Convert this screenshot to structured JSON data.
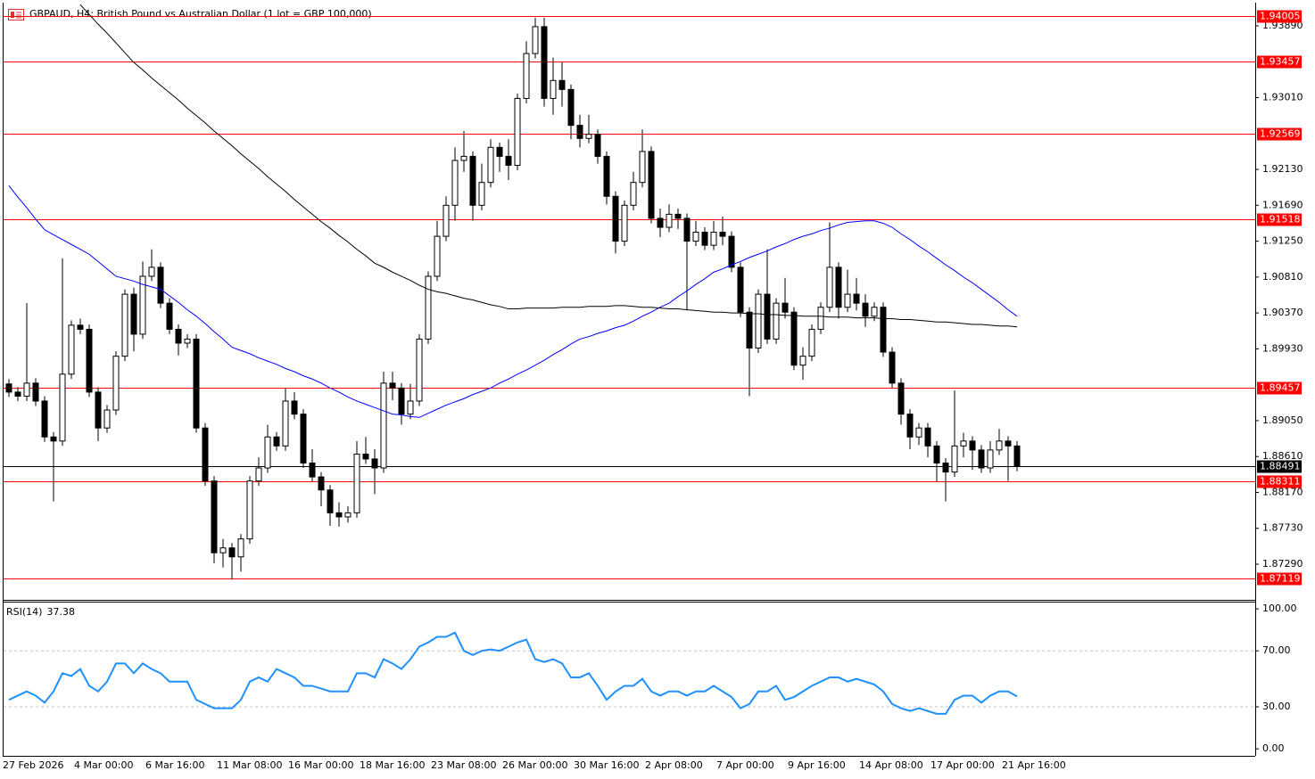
{
  "chart_data": [
    {
      "type": "candlestick",
      "title": "GBPAUD, H4: British Pound vs Australian Dollar (1 lot = GBP 100,000)",
      "categories": [
        "27 Feb 2026",
        null,
        null,
        null,
        null,
        null,
        null,
        null,
        "4 Mar 00:00",
        null,
        null,
        null,
        null,
        null,
        null,
        null,
        "6 Mar 16:00",
        null,
        null,
        null,
        null,
        null,
        null,
        null,
        "11 Mar 08:00",
        null,
        null,
        null,
        null,
        null,
        null,
        null,
        "16 Mar 00:00",
        null,
        null,
        null,
        null,
        null,
        null,
        null,
        "18 Mar 16:00",
        null,
        null,
        null,
        null,
        null,
        null,
        null,
        "23 Mar 08:00",
        null,
        null,
        null,
        null,
        null,
        null,
        null,
        "26 Mar 00:00",
        null,
        null,
        null,
        null,
        null,
        null,
        null,
        "30 Mar 16:00",
        null,
        null,
        null,
        null,
        null,
        null,
        null,
        "2 Apr 08:00",
        null,
        null,
        null,
        null,
        null,
        null,
        null,
        "7 Apr 00:00",
        null,
        null,
        null,
        null,
        null,
        null,
        null,
        "9 Apr 16:00",
        null,
        null,
        null,
        null,
        null,
        null,
        null,
        "14 Apr 08:00",
        null,
        null,
        null,
        null,
        null,
        null,
        null,
        "17 Apr 00:00",
        null,
        null,
        null,
        null,
        null,
        null,
        null,
        "21 Apr 16:00",
        null
      ],
      "open": [
        1.895,
        1.894,
        1.8935,
        1.8951,
        1.8929,
        1.8885,
        1.888,
        1.8962,
        1.9022,
        1.9017,
        1.894,
        1.8896,
        1.8918,
        1.8984,
        1.906,
        1.9011,
        1.9082,
        1.9093,
        1.9049,
        1.9017,
        1.9,
        1.9005,
        1.8896,
        1.8831,
        1.8743,
        1.8749,
        1.8738,
        1.876,
        1.8831,
        1.8847,
        1.8885,
        1.8874,
        1.8929,
        1.8913,
        1.8853,
        1.8836,
        1.882,
        1.8792,
        1.8787,
        1.8792,
        1.8864,
        1.8858,
        1.8847,
        1.8951,
        1.8945,
        1.8913,
        1.8929,
        1.9005,
        1.9082,
        1.9131,
        1.9169,
        1.9224,
        1.9229,
        1.9169,
        1.9197,
        1.924,
        1.9229,
        1.9218,
        1.93,
        1.9355,
        1.9388,
        1.93,
        1.9322,
        1.9311,
        1.9267,
        1.9251,
        1.9256,
        1.9229,
        1.918,
        1.9125,
        1.9169,
        1.9197,
        1.9235,
        1.9153,
        1.9142,
        1.9158,
        1.9153,
        1.9125,
        1.9136,
        1.912,
        1.9136,
        1.9131,
        1.9093,
        1.9038,
        1.8994,
        1.906,
        1.9005,
        1.9049,
        1.9038,
        1.8973,
        1.8984,
        1.9017,
        1.9044,
        1.9093,
        1.9044,
        1.906,
        1.9049,
        1.9033,
        1.9044,
        1.8989,
        1.8951,
        1.8913,
        1.8885,
        1.8896,
        1.8874,
        1.8853,
        1.8842,
        1.8874,
        1.888,
        1.8869,
        1.8847,
        1.8869,
        1.888,
        1.8874
      ],
      "high": [
        1.8956,
        1.8946,
        1.9049,
        1.8957,
        1.8935,
        1.8891,
        1.9104,
        1.9028,
        1.903,
        1.9023,
        1.8946,
        1.8924,
        1.899,
        1.9066,
        1.9068,
        1.91,
        1.9115,
        1.9099,
        1.9055,
        1.9023,
        1.9011,
        1.9011,
        1.8902,
        1.8837,
        1.876,
        1.8755,
        1.8766,
        1.8837,
        1.886,
        1.89,
        1.8891,
        1.8945,
        1.894,
        1.8919,
        1.887,
        1.8842,
        1.8826,
        1.8805,
        1.88,
        1.888,
        1.8885,
        1.887,
        1.8965,
        1.8965,
        1.8951,
        1.895,
        1.9011,
        1.9088,
        1.915,
        1.918,
        1.924,
        1.926,
        1.9235,
        1.922,
        1.925,
        1.9246,
        1.925,
        1.9306,
        1.937,
        1.9399,
        1.9399,
        1.935,
        1.9345,
        1.9317,
        1.928,
        1.928,
        1.9262,
        1.9235,
        1.9186,
        1.9175,
        1.921,
        1.9262,
        1.9241,
        1.9165,
        1.917,
        1.9165,
        1.9159,
        1.915,
        1.9142,
        1.915,
        1.9155,
        1.9137,
        1.9099,
        1.9044,
        1.9066,
        1.9115,
        1.9055,
        1.908,
        1.9044,
        1.8995,
        1.9023,
        1.905,
        1.9148,
        1.9099,
        1.909,
        1.908,
        1.906,
        1.905,
        1.905,
        1.8995,
        1.8957,
        1.8919,
        1.8902,
        1.8902,
        1.888,
        1.8859,
        1.8942,
        1.889,
        1.8886,
        1.8875,
        1.888,
        1.8895,
        1.8886,
        1.888
      ],
      "low": [
        1.8934,
        1.8929,
        1.8929,
        1.8923,
        1.8879,
        1.8806,
        1.8874,
        1.8956,
        1.9011,
        1.8934,
        1.888,
        1.889,
        1.8912,
        1.8978,
        1.899,
        1.9005,
        1.9076,
        1.9043,
        1.9011,
        1.8985,
        1.8994,
        1.889,
        1.8825,
        1.873,
        1.8725,
        1.871,
        1.872,
        1.8754,
        1.8825,
        1.8841,
        1.8868,
        1.8868,
        1.8907,
        1.8847,
        1.883,
        1.88,
        1.8776,
        1.8775,
        1.878,
        1.8786,
        1.8852,
        1.8815,
        1.8841,
        1.893,
        1.89,
        1.8907,
        1.8923,
        1.8999,
        1.9076,
        1.9125,
        1.915,
        1.921,
        1.915,
        1.9163,
        1.9191,
        1.921,
        1.92,
        1.9212,
        1.9294,
        1.9349,
        1.929,
        1.928,
        1.929,
        1.925,
        1.924,
        1.9245,
        1.922,
        1.917,
        1.911,
        1.9119,
        1.9163,
        1.9191,
        1.9147,
        1.913,
        1.9136,
        1.914,
        1.904,
        1.9119,
        1.9114,
        1.9114,
        1.912,
        1.9087,
        1.9032,
        1.8935,
        1.8988,
        1.8999,
        1.8999,
        1.903,
        1.8967,
        1.8955,
        1.8978,
        1.9011,
        1.9038,
        1.903,
        1.9038,
        1.904,
        1.902,
        1.9027,
        1.8983,
        1.8945,
        1.89,
        1.887,
        1.8875,
        1.886,
        1.883,
        1.8806,
        1.8836,
        1.886,
        1.8845,
        1.8841,
        1.8841,
        1.8863,
        1.8831,
        1.8843
      ],
      "close": [
        1.894,
        1.8935,
        1.8951,
        1.8929,
        1.8885,
        1.888,
        1.8962,
        1.9022,
        1.9017,
        1.894,
        1.8896,
        1.8918,
        1.8984,
        1.906,
        1.9011,
        1.9082,
        1.9093,
        1.9049,
        1.9017,
        1.9,
        1.9005,
        1.8896,
        1.8831,
        1.8743,
        1.8749,
        1.8738,
        1.876,
        1.8831,
        1.8847,
        1.8885,
        1.8874,
        1.8929,
        1.8913,
        1.8853,
        1.8836,
        1.882,
        1.8792,
        1.8787,
        1.8792,
        1.8864,
        1.8858,
        1.8847,
        1.8951,
        1.8945,
        1.8913,
        1.8929,
        1.9005,
        1.9082,
        1.9131,
        1.9169,
        1.9224,
        1.9229,
        1.9169,
        1.9197,
        1.924,
        1.9229,
        1.9218,
        1.93,
        1.9355,
        1.9388,
        1.93,
        1.9322,
        1.9311,
        1.9267,
        1.9251,
        1.9256,
        1.9229,
        1.918,
        1.9125,
        1.9169,
        1.9197,
        1.9235,
        1.9153,
        1.9142,
        1.9158,
        1.9153,
        1.9125,
        1.9136,
        1.912,
        1.9136,
        1.9131,
        1.9093,
        1.9038,
        1.8994,
        1.906,
        1.9005,
        1.9049,
        1.9038,
        1.8973,
        1.8984,
        1.9017,
        1.9044,
        1.9093,
        1.9044,
        1.906,
        1.9049,
        1.9033,
        1.9044,
        1.8989,
        1.8951,
        1.8913,
        1.8885,
        1.8896,
        1.8874,
        1.8853,
        1.8842,
        1.8874,
        1.888,
        1.8869,
        1.8847,
        1.8869,
        1.888,
        1.8874,
        1.8849
      ],
      "up_color": "#ffffff",
      "down_color": "#000000",
      "series": [
        {
          "color": "#0000ff",
          "values": [
            1.9193,
            1.9179,
            1.9166,
            1.9152,
            1.9139,
            1.9133,
            1.9127,
            1.9121,
            1.9115,
            1.9109,
            1.91,
            1.9091,
            1.9082,
            1.9079,
            1.9076,
            1.9072,
            1.9069,
            1.9066,
            1.9058,
            1.905,
            1.9041,
            1.9033,
            1.9024,
            1.9014,
            1.9005,
            1.8995,
            1.8991,
            1.8987,
            1.8982,
            1.8978,
            1.8974,
            1.8969,
            1.8965,
            1.896,
            1.8956,
            1.8951,
            1.8945,
            1.894,
            1.8934,
            1.8929,
            1.8925,
            1.8921,
            1.8917,
            1.8913,
            1.8912,
            1.891,
            1.8909,
            1.8914,
            1.8919,
            1.8924,
            1.8928,
            1.8932,
            1.8937,
            1.8941,
            1.8945,
            1.8951,
            1.8956,
            1.8962,
            1.8967,
            1.8973,
            1.8979,
            1.8986,
            1.8992,
            1.8999,
            1.9005,
            1.9008,
            1.9012,
            1.9015,
            1.9019,
            1.9022,
            1.9027,
            1.9033,
            1.9038,
            1.9044,
            1.9049,
            1.9057,
            1.9064,
            1.9072,
            1.9079,
            1.9087,
            1.9091,
            1.9096,
            1.91,
            1.9105,
            1.9109,
            1.9113,
            1.9118,
            1.9122,
            1.9127,
            1.9131,
            1.9134,
            1.9138,
            1.9141,
            1.9145,
            1.9148,
            1.9149,
            1.915,
            1.915,
            1.9147,
            1.9142,
            1.9134,
            1.9127,
            1.9119,
            1.9112,
            1.9104,
            1.9096,
            1.9089,
            1.9081,
            1.9074,
            1.9066,
            1.9058,
            1.905,
            1.9041,
            1.9033
          ]
        },
        {
          "color": "#000000",
          "values": [
            null,
            null,
            null,
            null,
            null,
            null,
            null,
            null,
            1.9415,
            1.9403,
            1.9391,
            1.938,
            1.9368,
            1.9356,
            1.9344,
            1.9335,
            1.9325,
            1.9316,
            1.9307,
            1.9298,
            1.9288,
            1.9279,
            1.927,
            1.926,
            1.9251,
            1.9242,
            1.9232,
            1.9223,
            1.9214,
            1.9204,
            1.9195,
            1.9186,
            1.9176,
            1.9167,
            1.9158,
            1.9149,
            1.9141,
            1.9132,
            1.9124,
            1.9115,
            1.9107,
            1.9098,
            1.9093,
            1.9087,
            1.9082,
            1.9077,
            1.9071,
            1.9066,
            1.9063,
            1.9061,
            1.9058,
            1.9055,
            1.9053,
            1.905,
            1.9047,
            1.9045,
            1.9042,
            1.9042,
            1.9043,
            1.9043,
            1.9043,
            1.9043,
            1.9044,
            1.9044,
            1.9044,
            1.9045,
            1.9045,
            1.9045,
            1.9046,
            1.9046,
            1.9045,
            1.9044,
            1.9044,
            1.9043,
            1.9042,
            1.9042,
            1.9041,
            1.904,
            1.9039,
            1.9038,
            1.9038,
            1.9037,
            1.9037,
            1.9036,
            1.9036,
            1.9035,
            1.9035,
            1.9034,
            1.9034,
            1.9033,
            1.9033,
            1.9033,
            1.9032,
            1.9032,
            1.9032,
            1.9031,
            1.9031,
            1.9031,
            1.903,
            1.903,
            1.9029,
            1.9029,
            1.9028,
            1.9027,
            1.9026,
            1.9026,
            1.9025,
            1.9024,
            1.9023,
            1.9023,
            1.9022,
            1.9021,
            1.9021,
            1.902
          ]
        }
      ],
      "levels": [
        1.94005,
        1.93457,
        1.92569,
        1.91518,
        1.89457,
        1.88311,
        1.87119
      ],
      "level_color": "#ff0000",
      "current_price": 1.88491,
      "ylim": [
        1.86864,
        1.94152
      ],
      "yticks": [
        {
          "value": 1.9389,
          "label": "1.93890"
        },
        {
          "value": 1.9301,
          "label": "1.93010"
        },
        {
          "value": 1.9213,
          "label": "1.92130"
        },
        {
          "value": 1.9169,
          "label": "1.91690"
        },
        {
          "value": 1.9125,
          "label": "1.91250"
        },
        {
          "value": 1.9081,
          "label": "1.90810"
        },
        {
          "value": 1.9037,
          "label": "1.90370"
        },
        {
          "value": 1.8993,
          "label": "1.89930"
        },
        {
          "value": 1.8905,
          "label": "1.89050"
        },
        {
          "value": 1.8861,
          "label": "1.88610"
        },
        {
          "value": 1.8817,
          "label": "1.88170"
        },
        {
          "value": 1.8773,
          "label": "1.87730"
        },
        {
          "value": 1.8729,
          "label": "1.87290"
        }
      ]
    },
    {
      "type": "line",
      "title": "RSI(14)",
      "series": [
        {
          "color": "#1e90ff",
          "values": [
            35,
            38,
            41,
            38,
            33,
            41,
            54,
            52,
            57,
            45,
            41,
            48,
            61,
            61,
            54,
            61,
            57,
            54,
            48,
            48,
            48,
            35,
            32,
            29,
            29,
            29,
            35,
            48,
            51,
            48,
            57,
            54,
            51,
            45,
            45,
            43,
            41,
            41,
            41,
            54,
            54,
            51,
            64,
            61,
            57,
            64,
            73,
            76,
            80,
            80,
            83,
            70,
            67,
            70,
            71,
            70,
            73,
            76,
            78,
            64,
            62,
            64,
            61,
            51,
            51,
            54,
            45,
            35,
            41,
            45,
            45,
            50,
            41,
            38,
            41,
            41,
            38,
            41,
            41,
            45,
            41,
            37,
            29,
            32,
            41,
            41,
            45,
            35,
            37,
            41,
            45,
            48,
            51,
            51,
            48,
            50,
            48,
            46,
            41,
            32,
            29,
            27,
            29,
            27,
            25,
            25,
            35,
            38,
            38,
            33,
            38,
            41,
            41,
            37.38
          ]
        }
      ],
      "ylim": [
        -5,
        104.5
      ],
      "yticks": [
        {
          "value": 100,
          "label": "100.00"
        },
        {
          "value": 70,
          "label": "70.00"
        },
        {
          "value": 30,
          "label": "30.00"
        },
        {
          "value": 0,
          "label": "0.00"
        }
      ],
      "grid": true
    }
  ]
}
